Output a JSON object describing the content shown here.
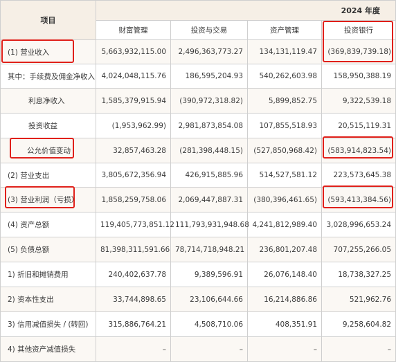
{
  "header": {
    "item_label": "项目",
    "year_label": "2024 年度",
    "columns": [
      "财富管理",
      "投资与交易",
      "资产管理",
      "投资银行"
    ]
  },
  "rows": [
    {
      "label": "(1) 营业收入",
      "values": [
        "5,663,932,115.00",
        "2,496,363,773.27",
        "134,131,119.47",
        "(369,839,739.18)"
      ]
    },
    {
      "label": "其中：手续费及佣金净收入",
      "values": [
        "4,024,048,115.76",
        "186,595,204.93",
        "540,262,603.98",
        "158,950,388.19"
      ]
    },
    {
      "label": "利息净收入",
      "values": [
        "1,585,379,915.94",
        "(390,972,318.82)",
        "5,899,852.75",
        "9,322,539.18"
      ]
    },
    {
      "label": "投资收益",
      "values": [
        "(1,953,962.99)",
        "2,981,873,854.08",
        "107,855,518.93",
        "20,515,119.31"
      ]
    },
    {
      "label": "公允价值变动",
      "values": [
        "32,857,463.28",
        "(281,398,448.15)",
        "(527,850,968.42)",
        "(583,914,823.54)"
      ]
    },
    {
      "label": "(2) 营业支出",
      "values": [
        "3,805,672,356.94",
        "426,915,885.96",
        "514,527,581.12",
        "223,573,645.38"
      ]
    },
    {
      "label": "(3) 营业利润（亏损）",
      "values": [
        "1,858,259,758.06",
        "2,069,447,887.31",
        "(380,396,461.65)",
        "(593,413,384.56)"
      ]
    },
    {
      "label": "(4) 资产总额",
      "values": [
        "119,405,773,851.12",
        "111,793,931,948.68",
        "4,241,812,989.40",
        "3,028,996,653.24"
      ]
    },
    {
      "label": "(5) 负债总额",
      "values": [
        "81,398,311,591.66",
        "78,714,718,948.21",
        "236,801,207.48",
        "707,255,266.05"
      ]
    },
    {
      "label": "1) 折旧和摊销费用",
      "values": [
        "240,402,637.78",
        "9,389,596.91",
        "26,076,148.40",
        "18,738,327.25"
      ]
    },
    {
      "label": "2) 资本性支出",
      "values": [
        "33,744,898.65",
        "23,106,644.66",
        "16,214,886.86",
        "521,962.76"
      ]
    },
    {
      "label": "3) 信用减值损失 / (转回)",
      "values": [
        "315,886,764.21",
        "4,508,710.06",
        "408,351.91",
        "9,258,604.82"
      ]
    },
    {
      "label": "4) 其他资产减值损失",
      "values": [
        "–",
        "–",
        "–",
        "–"
      ]
    }
  ],
  "highlight_color": "#e0201a"
}
